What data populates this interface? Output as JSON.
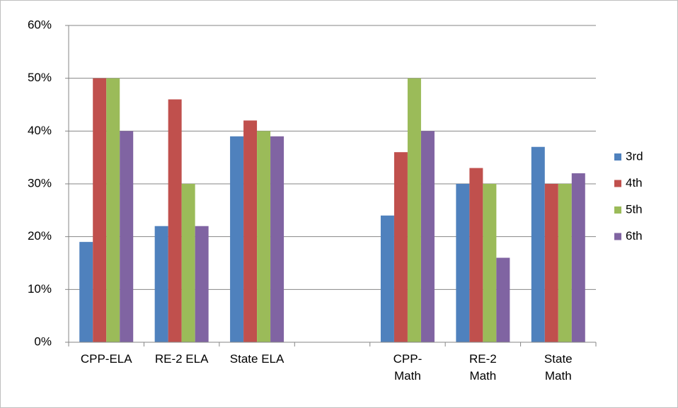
{
  "chart_data": {
    "type": "bar",
    "categories": [
      "CPP-ELA",
      "RE-2 ELA",
      "State ELA",
      null,
      "CPP-\nMath",
      "RE-2\nMath",
      "State\nMath"
    ],
    "series": [
      {
        "name": "3rd",
        "color": "#4f81bd",
        "values": [
          19,
          22,
          39,
          null,
          24,
          30,
          37
        ]
      },
      {
        "name": "4th",
        "color": "#c0504d",
        "values": [
          50,
          46,
          42,
          null,
          36,
          33,
          30
        ]
      },
      {
        "name": "5th",
        "color": "#9bbb59",
        "values": [
          50,
          30,
          40,
          null,
          50,
          30,
          30
        ]
      },
      {
        "name": "6th",
        "color": "#8064a2",
        "values": [
          40,
          22,
          39,
          null,
          40,
          16,
          32
        ]
      }
    ],
    "ylim": [
      0,
      60
    ],
    "yticks": [
      {
        "value": 0,
        "label": "0%"
      },
      {
        "value": 10,
        "label": "10%"
      },
      {
        "value": 20,
        "label": "20%"
      },
      {
        "value": 30,
        "label": "30%"
      },
      {
        "value": 40,
        "label": "40%"
      },
      {
        "value": 50,
        "label": "50%"
      },
      {
        "value": 60,
        "label": "60%"
      }
    ],
    "grid": true,
    "legend": "right"
  }
}
